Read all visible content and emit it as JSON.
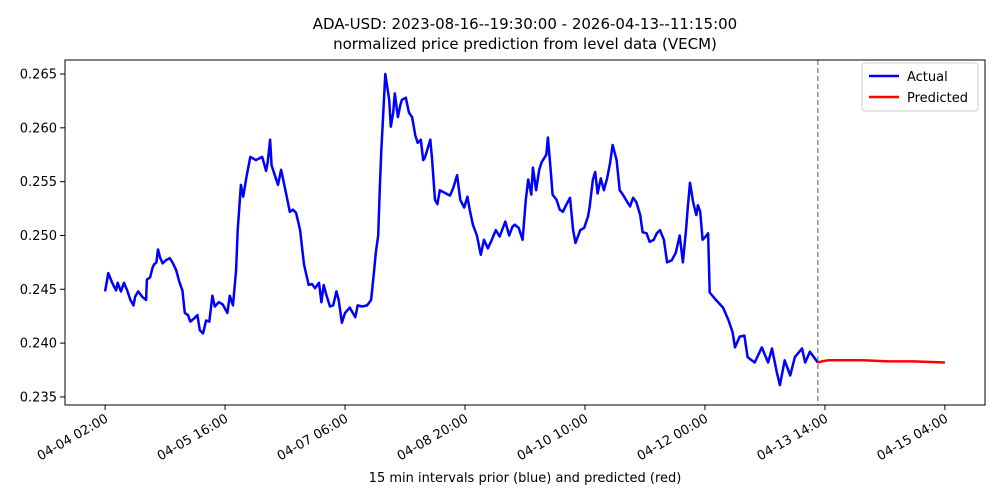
{
  "chart_data": {
    "type": "line",
    "title": "ADA-USD: 2023-08-16--19:30:00 - 2026-04-13--11:15:00",
    "subtitle": "normalized price prediction from level data (VECM)",
    "xlabel": "15 min intervals prior (blue) and predicted (red)",
    "ylabel": "",
    "x_units": "hours since 04-04 02:00",
    "xlim": [
      -12.7,
      278.7
    ],
    "ylim": [
      0.23425,
      0.2663
    ],
    "grid": false,
    "legend_position": "top-right",
    "x_ticks": [
      {
        "x": 0,
        "label": "04-04 02:00"
      },
      {
        "x": 38,
        "label": "04-05 16:00"
      },
      {
        "x": 76,
        "label": "04-07 06:00"
      },
      {
        "x": 114,
        "label": "04-08 20:00"
      },
      {
        "x": 152,
        "label": "04-10 10:00"
      },
      {
        "x": 190,
        "label": "04-12 00:00"
      },
      {
        "x": 228,
        "label": "04-13 14:00"
      },
      {
        "x": 266,
        "label": "04-15 04:00"
      }
    ],
    "y_ticks": [
      {
        "y": 0.235,
        "label": "0.235"
      },
      {
        "y": 0.24,
        "label": "0.240"
      },
      {
        "y": 0.245,
        "label": "0.245"
      },
      {
        "y": 0.25,
        "label": "0.250"
      },
      {
        "y": 0.255,
        "label": "0.255"
      },
      {
        "y": 0.26,
        "label": "0.260"
      },
      {
        "y": 0.265,
        "label": "0.265"
      }
    ],
    "forecast_start_x": 225.75,
    "series": [
      {
        "name": "Actual",
        "color": "#0000ff",
        "points": [
          [
            0,
            0.2448
          ],
          [
            1,
            0.2465
          ],
          [
            2.25,
            0.2456
          ],
          [
            3.5,
            0.2449
          ],
          [
            4,
            0.2456
          ],
          [
            5,
            0.2448
          ],
          [
            6,
            0.2456
          ],
          [
            7,
            0.2449
          ],
          [
            8,
            0.244
          ],
          [
            9,
            0.2435
          ],
          [
            9.5,
            0.2443
          ],
          [
            10.5,
            0.2448
          ],
          [
            11.75,
            0.2443
          ],
          [
            13,
            0.244
          ],
          [
            13.25,
            0.2459
          ],
          [
            14.25,
            0.2461
          ],
          [
            15,
            0.247
          ],
          [
            15.5,
            0.2473
          ],
          [
            16.25,
            0.2475
          ],
          [
            16.75,
            0.2487
          ],
          [
            17.5,
            0.2479
          ],
          [
            18.25,
            0.2474
          ],
          [
            19.25,
            0.2477
          ],
          [
            20.5,
            0.2479
          ],
          [
            21.5,
            0.2474
          ],
          [
            22.5,
            0.2468
          ],
          [
            23.5,
            0.2457
          ],
          [
            24.5,
            0.2449
          ],
          [
            25.25,
            0.2428
          ],
          [
            26.25,
            0.2426
          ],
          [
            27,
            0.242
          ],
          [
            28.25,
            0.2423
          ],
          [
            29.25,
            0.2426
          ],
          [
            30,
            0.2412
          ],
          [
            31,
            0.2409
          ],
          [
            32,
            0.2421
          ],
          [
            33,
            0.242
          ],
          [
            34,
            0.2444
          ],
          [
            34.75,
            0.2434
          ],
          [
            36,
            0.2438
          ],
          [
            37.25,
            0.2436
          ],
          [
            38.75,
            0.2428
          ],
          [
            39.5,
            0.2444
          ],
          [
            40.5,
            0.2435
          ],
          [
            41.5,
            0.2468
          ],
          [
            42,
            0.2505
          ],
          [
            43,
            0.2547
          ],
          [
            43.75,
            0.2536
          ],
          [
            44.75,
            0.2554
          ],
          [
            46,
            0.2573
          ],
          [
            47.75,
            0.257
          ],
          [
            49.75,
            0.2573
          ],
          [
            51,
            0.256
          ],
          [
            51.5,
            0.2568
          ],
          [
            52.25,
            0.2589
          ],
          [
            52.75,
            0.2565
          ],
          [
            53.75,
            0.2556
          ],
          [
            54.75,
            0.2547
          ],
          [
            55.75,
            0.2561
          ],
          [
            56.75,
            0.2547
          ],
          [
            57.75,
            0.2533
          ],
          [
            58.5,
            0.2522
          ],
          [
            59.5,
            0.2524
          ],
          [
            60.5,
            0.2521
          ],
          [
            61.75,
            0.2505
          ],
          [
            63,
            0.2473
          ],
          [
            64.5,
            0.2454
          ],
          [
            65.5,
            0.2455
          ],
          [
            66.5,
            0.2451
          ],
          [
            67.75,
            0.2456
          ],
          [
            68.5,
            0.2438
          ],
          [
            69.25,
            0.2454
          ],
          [
            70.25,
            0.2443
          ],
          [
            71.25,
            0.2434
          ],
          [
            72.25,
            0.2435
          ],
          [
            73.25,
            0.2448
          ],
          [
            74,
            0.244
          ],
          [
            75,
            0.2419
          ],
          [
            76,
            0.2428
          ],
          [
            77.5,
            0.2433
          ],
          [
            79.25,
            0.2424
          ],
          [
            80,
            0.2435
          ],
          [
            81.5,
            0.2434
          ],
          [
            83,
            0.2435
          ],
          [
            84.25,
            0.244
          ],
          [
            85.25,
            0.2468
          ],
          [
            85.75,
            0.2484
          ],
          [
            86.5,
            0.25
          ],
          [
            87,
            0.2544
          ],
          [
            87.5,
            0.2579
          ],
          [
            88,
            0.2607
          ],
          [
            88.75,
            0.265
          ],
          [
            90,
            0.2626
          ],
          [
            90.5,
            0.2601
          ],
          [
            91.25,
            0.2614
          ],
          [
            91.75,
            0.2632
          ],
          [
            92.75,
            0.261
          ],
          [
            93.5,
            0.2621
          ],
          [
            94,
            0.2626
          ],
          [
            95.25,
            0.2628
          ],
          [
            96.25,
            0.2614
          ],
          [
            97.25,
            0.261
          ],
          [
            98.25,
            0.2593
          ],
          [
            99,
            0.2586
          ],
          [
            100,
            0.2589
          ],
          [
            100.75,
            0.257
          ],
          [
            101.25,
            0.2572
          ],
          [
            103,
            0.2589
          ],
          [
            103.5,
            0.2573
          ],
          [
            104.5,
            0.2533
          ],
          [
            105.25,
            0.2529
          ],
          [
            106,
            0.2542
          ],
          [
            109.25,
            0.2537
          ],
          [
            110.25,
            0.2544
          ],
          [
            111.5,
            0.2556
          ],
          [
            112.5,
            0.2533
          ],
          [
            113.75,
            0.2526
          ],
          [
            114.75,
            0.2536
          ],
          [
            115.5,
            0.2524
          ],
          [
            116.5,
            0.251
          ],
          [
            117.75,
            0.25
          ],
          [
            119,
            0.2482
          ],
          [
            120,
            0.2496
          ],
          [
            121.25,
            0.2488
          ],
          [
            122.5,
            0.2496
          ],
          [
            123.75,
            0.2505
          ],
          [
            125,
            0.2499
          ],
          [
            126.75,
            0.2513
          ],
          [
            128,
            0.25
          ],
          [
            129,
            0.2508
          ],
          [
            129.75,
            0.251
          ],
          [
            131,
            0.2507
          ],
          [
            132.25,
            0.2496
          ],
          [
            133.25,
            0.2533
          ],
          [
            134,
            0.2552
          ],
          [
            135,
            0.2538
          ],
          [
            135.5,
            0.2563
          ],
          [
            136.5,
            0.2542
          ],
          [
            137.5,
            0.2561
          ],
          [
            138.25,
            0.2568
          ],
          [
            139.75,
            0.2575
          ],
          [
            140.25,
            0.2591
          ],
          [
            141,
            0.2565
          ],
          [
            141.75,
            0.2538
          ],
          [
            143,
            0.2533
          ],
          [
            144,
            0.2524
          ],
          [
            145,
            0.2522
          ],
          [
            146,
            0.2528
          ],
          [
            147.25,
            0.2535
          ],
          [
            148.25,
            0.2505
          ],
          [
            149,
            0.2493
          ],
          [
            150.5,
            0.2505
          ],
          [
            151.75,
            0.2507
          ],
          [
            153,
            0.2518
          ],
          [
            153.5,
            0.2527
          ],
          [
            154.5,
            0.2552
          ],
          [
            155.25,
            0.2559
          ],
          [
            156,
            0.2539
          ],
          [
            157,
            0.2553
          ],
          [
            158,
            0.2542
          ],
          [
            159,
            0.2553
          ],
          [
            160,
            0.2568
          ],
          [
            160.75,
            0.2584
          ],
          [
            162,
            0.257
          ],
          [
            163,
            0.2542
          ],
          [
            164,
            0.2538
          ],
          [
            165,
            0.2533
          ],
          [
            166.25,
            0.2527
          ],
          [
            167.25,
            0.2535
          ],
          [
            168.25,
            0.2531
          ],
          [
            169.5,
            0.2519
          ],
          [
            170.25,
            0.2503
          ],
          [
            171.5,
            0.2502
          ],
          [
            172.5,
            0.2494
          ],
          [
            173.75,
            0.2496
          ],
          [
            174.75,
            0.2502
          ],
          [
            175.75,
            0.2505
          ],
          [
            177,
            0.2496
          ],
          [
            178,
            0.2475
          ],
          [
            179.5,
            0.2477
          ],
          [
            180.75,
            0.2484
          ],
          [
            182,
            0.25
          ],
          [
            183,
            0.2475
          ],
          [
            184,
            0.2505
          ],
          [
            184.5,
            0.2524
          ],
          [
            185.25,
            0.2549
          ],
          [
            186.25,
            0.2531
          ],
          [
            187.25,
            0.2519
          ],
          [
            187.75,
            0.2528
          ],
          [
            188.5,
            0.2522
          ],
          [
            189.25,
            0.2496
          ],
          [
            190.25,
            0.2499
          ],
          [
            191,
            0.2502
          ],
          [
            191.5,
            0.2447
          ],
          [
            193.5,
            0.244
          ],
          [
            195.75,
            0.2433
          ],
          [
            197.5,
            0.2421
          ],
          [
            198.75,
            0.241
          ],
          [
            199.5,
            0.2396
          ],
          [
            201,
            0.2406
          ],
          [
            202.5,
            0.2407
          ],
          [
            203.5,
            0.2387
          ],
          [
            205.75,
            0.2382
          ],
          [
            208,
            0.2396
          ],
          [
            210,
            0.2382
          ],
          [
            211.25,
            0.2395
          ],
          [
            212.75,
            0.2373
          ],
          [
            213.75,
            0.2361
          ],
          [
            215.25,
            0.2384
          ],
          [
            217,
            0.237
          ],
          [
            218.5,
            0.2387
          ],
          [
            220.75,
            0.2395
          ],
          [
            221.75,
            0.2382
          ],
          [
            223.25,
            0.2392
          ],
          [
            225.75,
            0.2382
          ]
        ]
      },
      {
        "name": "Predicted",
        "color": "#ff0000",
        "points": [
          [
            225.75,
            0.2382
          ],
          [
            227,
            0.2383
          ],
          [
            229,
            0.2384
          ],
          [
            233,
            0.2384
          ],
          [
            240,
            0.2384
          ],
          [
            248,
            0.2383
          ],
          [
            256,
            0.2383
          ],
          [
            266,
            0.2382
          ]
        ]
      }
    ]
  }
}
